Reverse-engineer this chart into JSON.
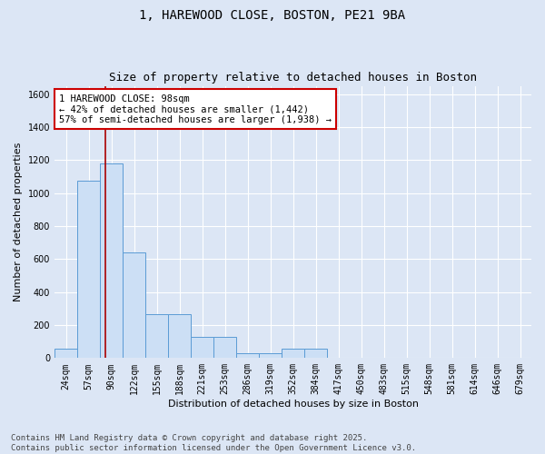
{
  "title_line1": "1, HAREWOOD CLOSE, BOSTON, PE21 9BA",
  "title_line2": "Size of property relative to detached houses in Boston",
  "xlabel": "Distribution of detached houses by size in Boston",
  "ylabel": "Number of detached properties",
  "bar_color": "#ccdff5",
  "bar_edge_color": "#5b9bd5",
  "background_color": "#dce6f5",
  "plot_bg_color": "#dce6f5",
  "grid_color": "#ffffff",
  "categories": [
    "24sqm",
    "57sqm",
    "90sqm",
    "122sqm",
    "155sqm",
    "188sqm",
    "221sqm",
    "253sqm",
    "286sqm",
    "319sqm",
    "352sqm",
    "384sqm",
    "417sqm",
    "450sqm",
    "483sqm",
    "515sqm",
    "548sqm",
    "581sqm",
    "614sqm",
    "646sqm",
    "679sqm"
  ],
  "values": [
    55,
    1075,
    1180,
    640,
    265,
    265,
    130,
    130,
    30,
    30,
    55,
    55,
    0,
    0,
    0,
    0,
    0,
    0,
    0,
    0,
    0
  ],
  "ylim": [
    0,
    1650
  ],
  "yticks": [
    0,
    200,
    400,
    600,
    800,
    1000,
    1200,
    1400,
    1600
  ],
  "annotation_text": "1 HAREWOOD CLOSE: 98sqm\n← 42% of detached houses are smaller (1,442)\n57% of semi-detached houses are larger (1,938) →",
  "annotation_box_color": "#ffffff",
  "annotation_border_color": "#cc0000",
  "vline_color": "#aa0000",
  "footer_line1": "Contains HM Land Registry data © Crown copyright and database right 2025.",
  "footer_line2": "Contains public sector information licensed under the Open Government Licence v3.0.",
  "title_fontsize": 10,
  "subtitle_fontsize": 9,
  "axis_label_fontsize": 8,
  "tick_fontsize": 7,
  "annotation_fontsize": 7.5,
  "footer_fontsize": 6.5
}
